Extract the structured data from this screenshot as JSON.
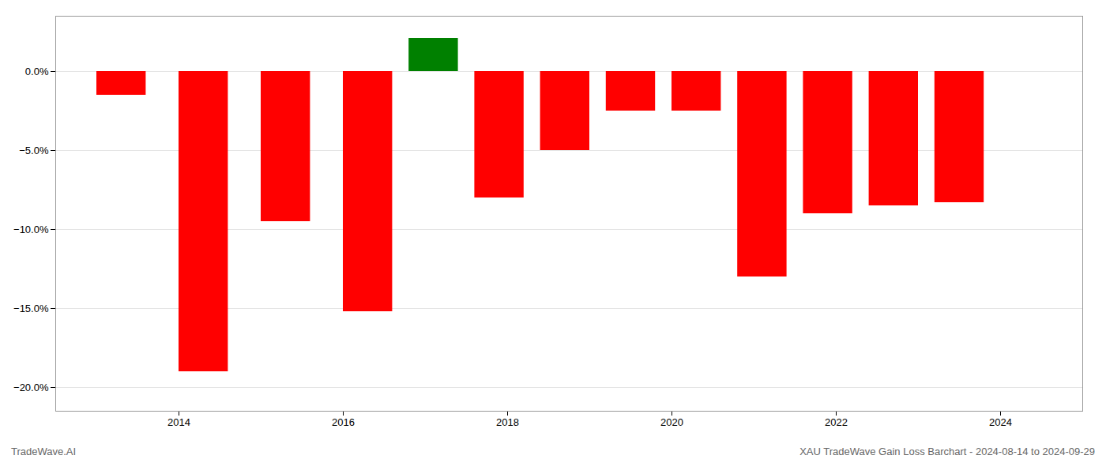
{
  "chart_data": {
    "type": "bar",
    "x": [
      2013.3,
      2014.3,
      2015.3,
      2016.3,
      2017.1,
      2017.9,
      2018.7,
      2019.5,
      2020.3,
      2021.1,
      2021.9,
      2022.7,
      2023.5
    ],
    "values": [
      -1.5,
      -19.0,
      -9.5,
      -15.2,
      2.1,
      -8.0,
      -5.0,
      -2.5,
      -2.5,
      -13.0,
      -9.0,
      -8.5,
      -8.3
    ],
    "colors": [
      "red",
      "red",
      "red",
      "red",
      "green",
      "red",
      "red",
      "red",
      "red",
      "red",
      "red",
      "red",
      "red"
    ],
    "xlim": [
      2012.5,
      2025.0
    ],
    "xticks": [
      2014,
      2016,
      2018,
      2020,
      2022,
      2024
    ],
    "ylim": [
      -21.5,
      3.5
    ],
    "yticks": [
      {
        "value": 0.0,
        "label": "0.0%"
      },
      {
        "value": -5.0,
        "label": "−5.0%"
      },
      {
        "value": -10.0,
        "label": "−10.0%"
      },
      {
        "value": -15.0,
        "label": "−15.0%"
      },
      {
        "value": -20.0,
        "label": "−20.0%"
      }
    ],
    "grid": "y",
    "annotations": [
      "TradeWave.AI",
      "XAU TradeWave Gain Loss Barchart - 2024-08-14 to 2024-09-29"
    ]
  }
}
